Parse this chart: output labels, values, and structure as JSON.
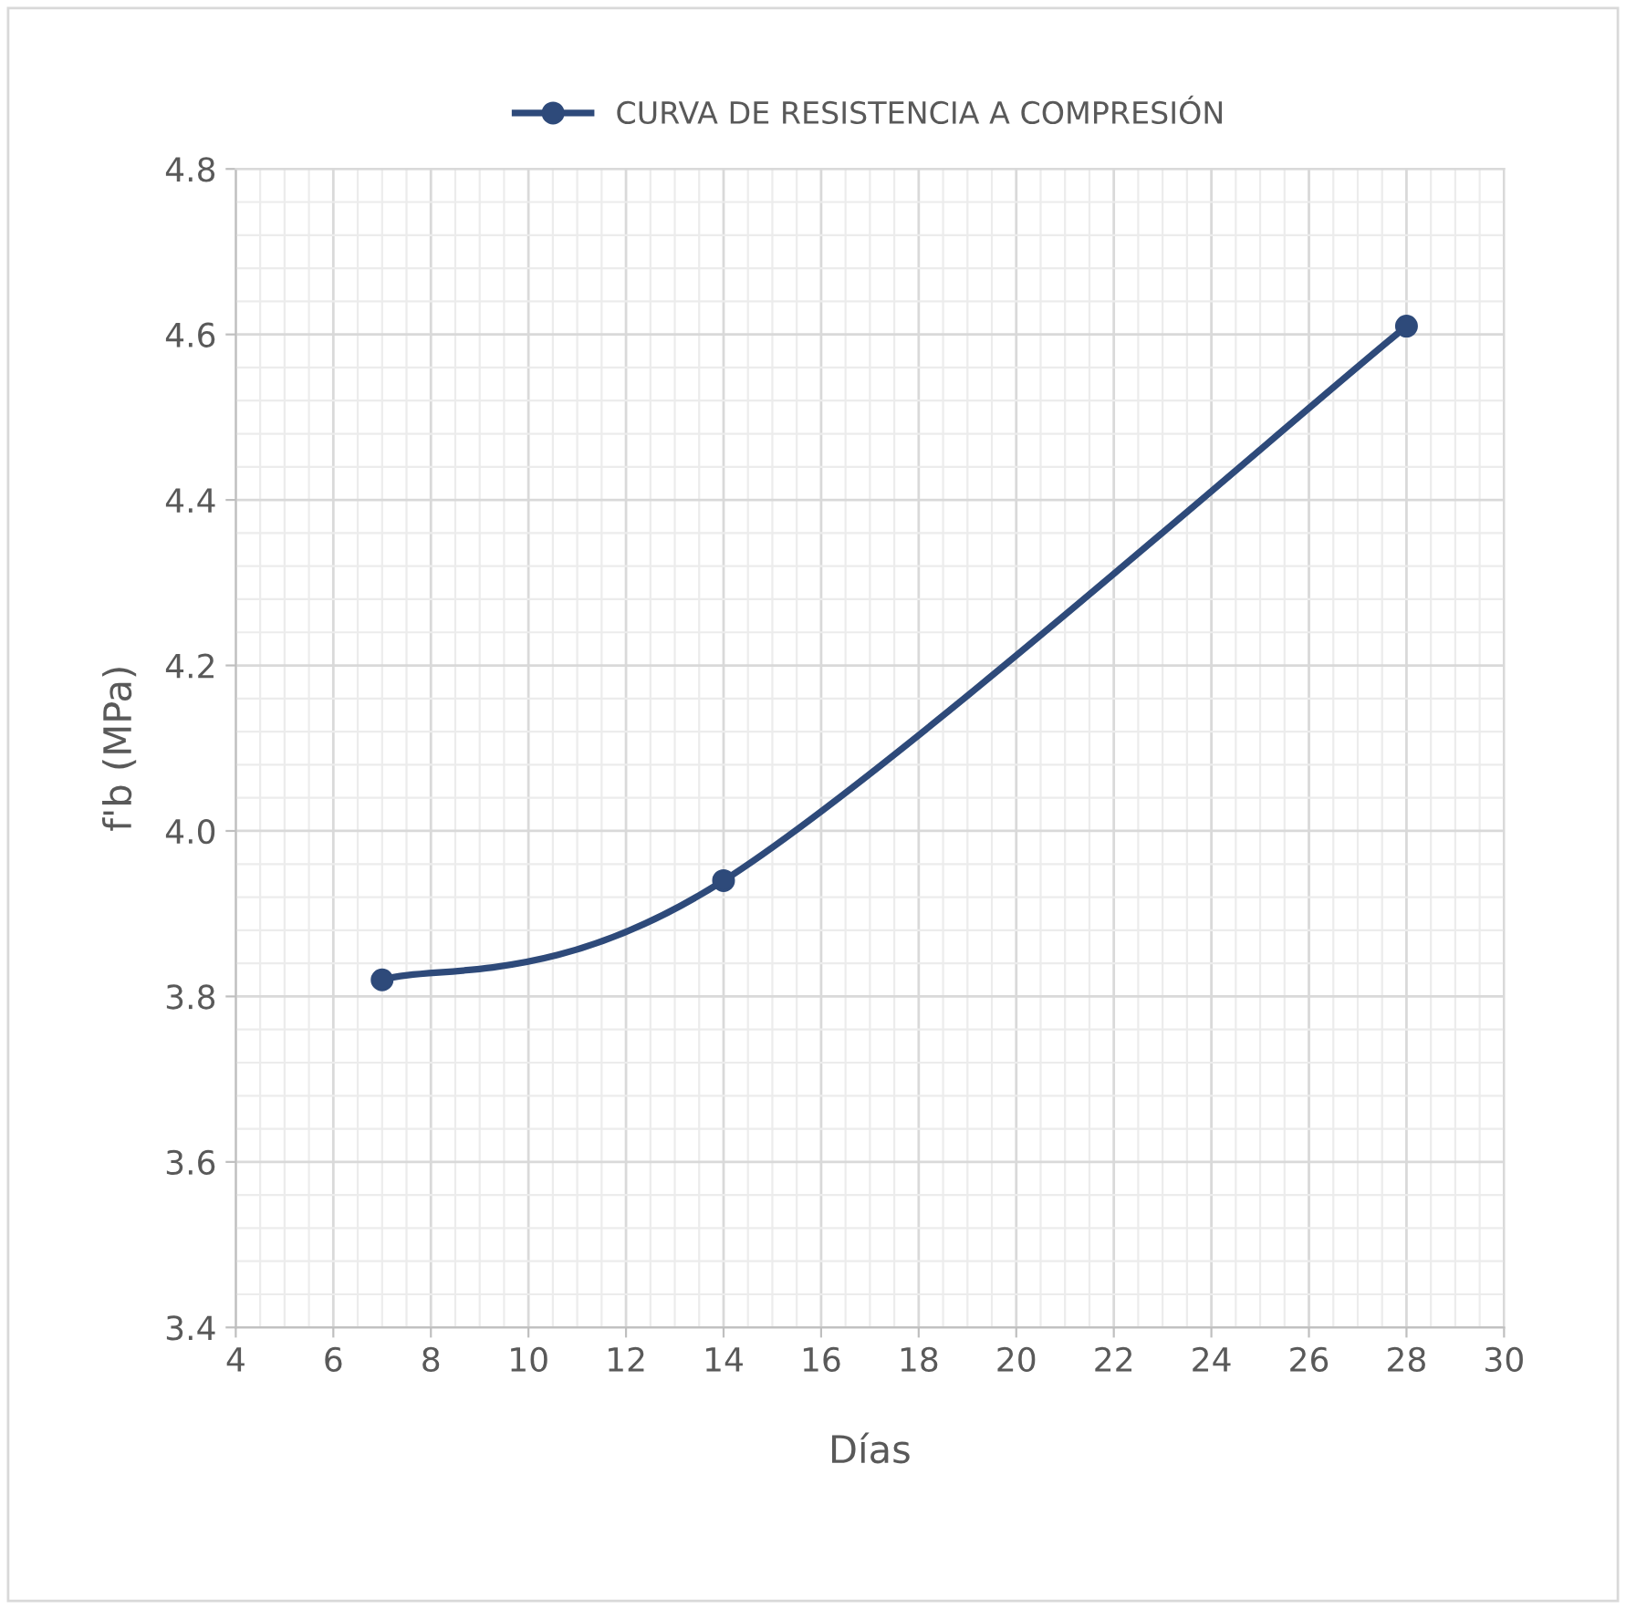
{
  "chart_data": {
    "type": "line",
    "xlabel": "Días",
    "ylabel": "f'b (MPa)",
    "x": [
      7,
      14,
      28
    ],
    "series": [
      {
        "name": "CURVA DE RESISTENCIA A COMPRESIÓN",
        "color": "#2e4a7a",
        "values": [
          3.82,
          3.94,
          4.61
        ]
      }
    ],
    "marker": "circle",
    "line_style": "solid",
    "xlim": [
      4,
      30
    ],
    "xticks": [
      4,
      6,
      8,
      10,
      12,
      14,
      16,
      18,
      20,
      22,
      24,
      26,
      28,
      30
    ],
    "ylim": [
      3.4,
      4.8
    ],
    "yticks": [
      3.4,
      3.6,
      3.8,
      {
        "value": 4.0,
        "label": "4.0"
      },
      4.2,
      4.4,
      4.6,
      4.8
    ],
    "grid": true,
    "legend": "top"
  }
}
